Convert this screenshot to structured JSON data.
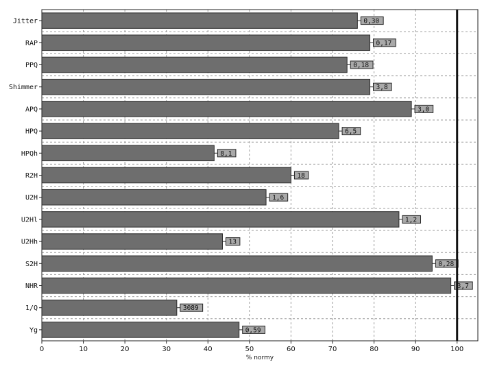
{
  "chart_data": {
    "type": "bar",
    "orientation": "horizontal",
    "categories": [
      "Jitter",
      "RAP",
      "PPQ",
      "Shimmer",
      "APQ",
      "HPQ",
      "HPQh",
      "R2H",
      "U2H",
      "U2Hl",
      "U2Hh",
      "S2H",
      "NHR",
      "1/Q",
      "Yg"
    ],
    "values": [
      76,
      79,
      73.5,
      79,
      89,
      71.5,
      41.5,
      60,
      54,
      86,
      43.5,
      94,
      98.5,
      32.5,
      47.5
    ],
    "data_labels": [
      "0,30",
      "0,17",
      "0,18",
      "3,8",
      "3,0",
      "6,5",
      "8,1",
      "18",
      "1,6",
      "1,2",
      "13",
      "0,28",
      "3,7",
      "3089",
      "0,59"
    ],
    "xlim": [
      0,
      105
    ],
    "x_ticks": [
      0,
      10,
      20,
      30,
      40,
      50,
      60,
      70,
      80,
      90,
      100
    ],
    "xlabel": "% normy",
    "ylabel": "",
    "title": "",
    "reference_line": 100,
    "grid": true,
    "legend": "none",
    "colors": {
      "bar_fill": "#6e6e6e",
      "bar_stroke": "#2a2a2a",
      "label_box_fill": "#a9a9a9",
      "label_box_stroke": "#222222",
      "grid": "#9a9a9a",
      "reference_line": "#111111",
      "frame": "#222222"
    }
  }
}
